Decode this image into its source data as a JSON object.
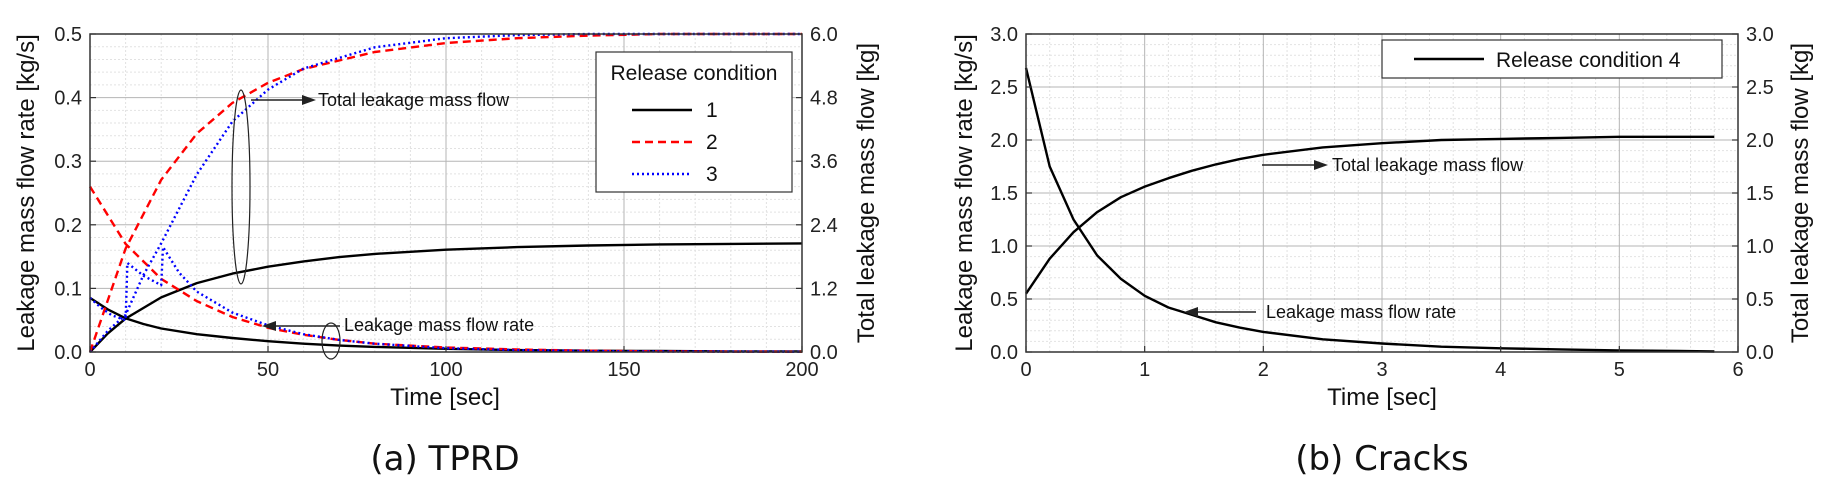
{
  "chart_data": [
    {
      "type": "line",
      "caption": "(a) TPRD",
      "xlabel": "Time [sec]",
      "ylabel": "Leakage mass flow rate [kg/s]",
      "y2label": "Total leakage mass flow [kg]",
      "xlim": [
        0,
        200
      ],
      "ylim": [
        0,
        0.5
      ],
      "y2lim": [
        0,
        6.0
      ],
      "xticks": [
        "0",
        "50",
        "100",
        "150",
        "200"
      ],
      "yticks": [
        "0.0",
        "0.1",
        "0.2",
        "0.3",
        "0.4",
        "0.5"
      ],
      "y2ticks": [
        "0.0",
        "1.2",
        "2.4",
        "3.6",
        "4.8",
        "6.0"
      ],
      "grid": true,
      "legend": {
        "title": "Release condition",
        "placement": "top-right",
        "entries": [
          {
            "label": "1",
            "color": "#000000",
            "style": "solid"
          },
          {
            "label": "2",
            "color": "#ff0000",
            "style": "dashed"
          },
          {
            "label": "3",
            "color": "#0000ff",
            "style": "dotted"
          }
        ]
      },
      "annotations": [
        "Total leakage mass flow",
        "Leakage mass flow rate"
      ],
      "series": [
        {
          "legend": "1",
          "axis": "left",
          "color": "#000000",
          "style": "solid",
          "x": [
            0,
            5,
            10,
            15,
            20,
            30,
            40,
            50,
            60,
            70,
            80,
            100,
            120,
            140,
            160,
            180,
            200
          ],
          "y": [
            0.085,
            0.067,
            0.053,
            0.044,
            0.037,
            0.028,
            0.022,
            0.017,
            0.013,
            0.01,
            0.008,
            0.005,
            0.003,
            0.002,
            0.0015,
            0.001,
            0.001
          ]
        },
        {
          "legend": "1",
          "axis": "right",
          "color": "#000000",
          "style": "solid",
          "x": [
            0,
            5,
            10,
            20,
            30,
            40,
            50,
            60,
            70,
            80,
            100,
            120,
            140,
            160,
            180,
            200
          ],
          "y": [
            0.0,
            0.35,
            0.63,
            1.03,
            1.3,
            1.48,
            1.61,
            1.71,
            1.79,
            1.85,
            1.93,
            1.98,
            2.01,
            2.03,
            2.04,
            2.05
          ]
        },
        {
          "legend": "2",
          "axis": "left",
          "color": "#ff0000",
          "style": "dashed",
          "x": [
            0,
            10,
            20,
            30,
            40,
            50,
            60,
            70,
            80,
            100,
            120,
            140,
            160,
            180,
            200
          ],
          "y": [
            0.26,
            0.17,
            0.115,
            0.08,
            0.055,
            0.038,
            0.027,
            0.019,
            0.013,
            0.007,
            0.004,
            0.002,
            0.001,
            0.0005,
            0.0003
          ]
        },
        {
          "legend": "2",
          "axis": "right",
          "color": "#ff0000",
          "style": "dashed",
          "x": [
            0,
            10,
            20,
            30,
            40,
            50,
            60,
            80,
            100,
            120,
            140,
            160,
            180,
            200
          ],
          "y": [
            0.0,
            1.95,
            3.25,
            4.12,
            4.7,
            5.08,
            5.34,
            5.66,
            5.83,
            5.92,
            5.97,
            6.0,
            6.0,
            6.0
          ]
        },
        {
          "legend": "3",
          "axis": "left",
          "color": "#0000ff",
          "style": "dotted",
          "x": [
            0,
            3,
            6,
            10,
            10.5,
            15,
            20,
            20.5,
            25,
            30,
            40,
            50,
            60,
            70,
            80,
            100,
            120,
            140,
            160,
            200
          ],
          "y": [
            0.085,
            0.07,
            0.058,
            0.05,
            0.14,
            0.12,
            0.105,
            0.165,
            0.125,
            0.095,
            0.062,
            0.042,
            0.028,
            0.019,
            0.013,
            0.006,
            0.003,
            0.0015,
            0.0008,
            0.0003
          ]
        },
        {
          "legend": "3",
          "axis": "right",
          "color": "#0000ff",
          "style": "dotted",
          "x": [
            0,
            5,
            10,
            15,
            20,
            30,
            40,
            50,
            60,
            80,
            100,
            120,
            140,
            160,
            180,
            200
          ],
          "y": [
            0.0,
            0.4,
            0.7,
            1.45,
            2.05,
            3.35,
            4.35,
            4.95,
            5.35,
            5.75,
            5.92,
            5.98,
            6.0,
            6.0,
            6.0,
            6.0
          ]
        }
      ]
    },
    {
      "type": "line",
      "caption": "(b) Cracks",
      "xlabel": "Time [sec]",
      "ylabel": "Leakage mass flow rate [kg/s]",
      "y2label": "Total leakage mass flow [kg]",
      "xlim": [
        0,
        6
      ],
      "ylim": [
        0,
        3.0
      ],
      "y2lim": [
        0,
        3.0
      ],
      "xticks": [
        "0",
        "1",
        "2",
        "3",
        "4",
        "5",
        "6"
      ],
      "yticks": [
        "0.0",
        "0.5",
        "1.0",
        "1.5",
        "2.0",
        "2.5",
        "3.0"
      ],
      "y2ticks": [
        "0.0",
        "0.5",
        "1.0",
        "1.5",
        "2.0",
        "2.5",
        "3.0"
      ],
      "grid": true,
      "legend": {
        "placement": "top-right",
        "entries": [
          {
            "label": "Release condition 4",
            "color": "#000000",
            "style": "solid"
          }
        ]
      },
      "annotations": [
        "Total leakage mass flow",
        "Leakage mass flow rate"
      ],
      "series": [
        {
          "legend": "Release condition 4",
          "axis": "left",
          "color": "#000000",
          "style": "solid",
          "x": [
            0,
            0.2,
            0.4,
            0.6,
            0.8,
            1.0,
            1.2,
            1.4,
            1.6,
            1.8,
            2.0,
            2.5,
            3.0,
            3.5,
            4.0,
            4.5,
            5.0,
            5.5,
            5.8
          ],
          "y": [
            2.68,
            1.75,
            1.25,
            0.91,
            0.69,
            0.53,
            0.42,
            0.35,
            0.28,
            0.23,
            0.19,
            0.12,
            0.08,
            0.05,
            0.035,
            0.025,
            0.015,
            0.01,
            0.005
          ]
        },
        {
          "legend": "Release condition 4",
          "axis": "right",
          "color": "#000000",
          "style": "solid",
          "x": [
            0,
            0.2,
            0.4,
            0.6,
            0.8,
            1.0,
            1.2,
            1.4,
            1.6,
            1.8,
            2.0,
            2.5,
            3.0,
            3.5,
            4.0,
            4.5,
            5.0,
            5.5,
            5.8
          ],
          "y": [
            0.55,
            0.88,
            1.13,
            1.32,
            1.46,
            1.56,
            1.64,
            1.71,
            1.77,
            1.82,
            1.86,
            1.93,
            1.97,
            2.0,
            2.01,
            2.02,
            2.03,
            2.03,
            2.03
          ]
        }
      ]
    }
  ]
}
